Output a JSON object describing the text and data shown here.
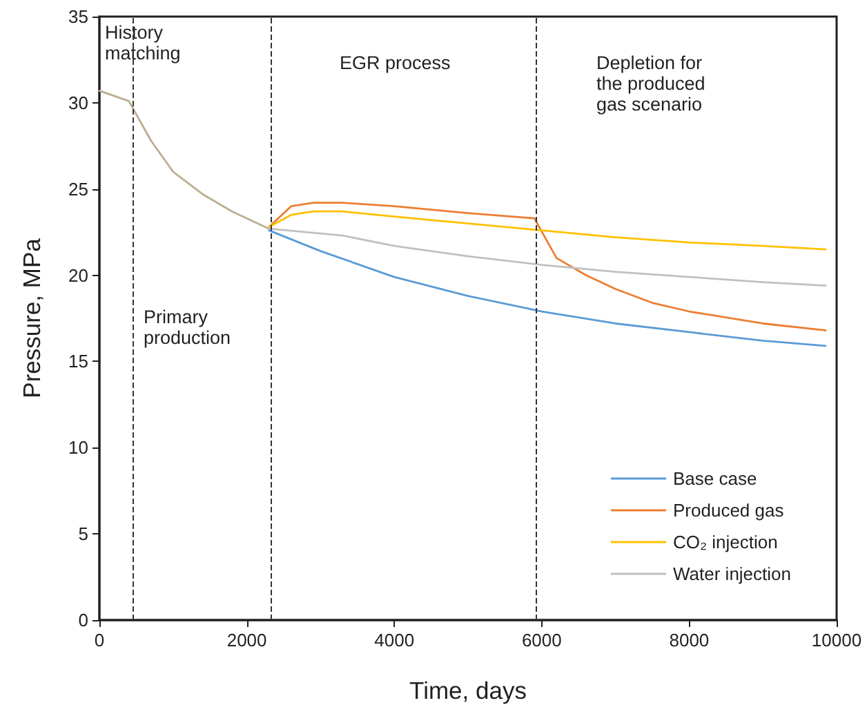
{
  "chart_data": {
    "type": "line",
    "xlabel": "Time, days",
    "ylabel": "Pressure, MPa",
    "xlim": [
      0,
      10000
    ],
    "xticks": [
      0,
      2000,
      4000,
      6000,
      8000,
      10000
    ],
    "ylim": [
      0,
      35
    ],
    "yticks": [
      0,
      5,
      10,
      15,
      20,
      25,
      30,
      35
    ],
    "grid": false,
    "legend": "bottom right",
    "marker": "none",
    "line_style": "solid",
    "annotations": [
      "History matching",
      "Primary production",
      "EGR process",
      "Depletion for the produced gas scenario"
    ],
    "ref_lines": [
      {
        "axis": "x",
        "value": 450,
        "color": "#333333",
        "line_style": "dashed"
      },
      {
        "axis": "x",
        "value": 2320,
        "color": "#333333",
        "line_style": "dashed"
      },
      {
        "axis": "x",
        "value": 5920,
        "color": "#333333",
        "line_style": "dashed"
      }
    ],
    "series": [
      {
        "color": "#bcae8e",
        "x": [
          0,
          400,
          700,
          1000,
          1400,
          1800,
          2300
        ],
        "values": [
          30.7,
          30.1,
          27.8,
          26,
          24.7,
          23.7,
          22.7
        ]
      },
      {
        "name": "Base case",
        "color": "#5b9bd5",
        "x": [
          2300,
          3000,
          4000,
          5000,
          6000,
          7000,
          8000,
          9000,
          9850
        ],
        "values": [
          22.6,
          21.4,
          19.9,
          18.8,
          17.9,
          17.2,
          16.7,
          16.2,
          15.9
        ]
      },
      {
        "name": "Produced gas",
        "color": "#ed7d31",
        "x": [
          2300,
          2600,
          2900,
          3300,
          4000,
          5000,
          5900,
          6200,
          6600,
          7000,
          7500,
          8000,
          9000,
          9850
        ],
        "values": [
          22.8,
          24,
          24.2,
          24.2,
          24,
          23.6,
          23.3,
          21,
          20,
          19.2,
          18.4,
          17.9,
          17.2,
          16.8
        ]
      },
      {
        "name": "CO₂ injection",
        "color": "#ffc000",
        "x": [
          2300,
          2600,
          2900,
          3300,
          4000,
          5000,
          6000,
          7000,
          8000,
          9000,
          9850
        ],
        "values": [
          22.8,
          23.5,
          23.7,
          23.7,
          23.4,
          23,
          22.6,
          22.2,
          21.9,
          21.7,
          21.5
        ]
      },
      {
        "name": "Water injection",
        "color": "#c0c0c0",
        "x": [
          2300,
          2800,
          3300,
          4000,
          5000,
          6000,
          7000,
          8000,
          9000,
          9850
        ],
        "values": [
          22.7,
          22.5,
          22.3,
          21.7,
          21.1,
          20.6,
          20.2,
          19.9,
          19.6,
          19.4
        ]
      }
    ]
  }
}
